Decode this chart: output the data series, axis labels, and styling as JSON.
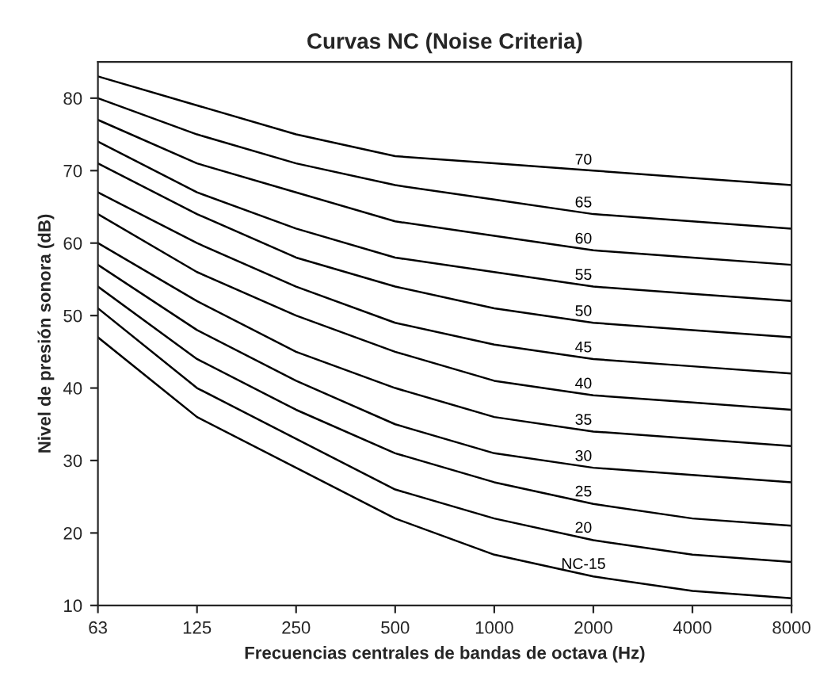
{
  "chart_data": {
    "type": "line",
    "title": "Curvas NC (Noise Criteria)",
    "xlabel": "Frecuencias centrales de bandas de octava (Hz)",
    "ylabel": "Nivel de presión sonora (dB)",
    "categories": [
      "63",
      "125",
      "250",
      "500",
      "1000",
      "2000",
      "4000",
      "8000"
    ],
    "ylim": [
      10,
      85
    ],
    "yticks": [
      10,
      20,
      30,
      40,
      50,
      60,
      70,
      80
    ],
    "grid": false,
    "legend": false,
    "marker": "none",
    "line_style": "solid",
    "series": [
      {
        "name": "NC-15",
        "color": "#000000",
        "values": [
          47,
          36,
          29,
          22,
          17,
          14,
          12,
          11
        ]
      },
      {
        "name": "20",
        "color": "#000000",
        "values": [
          51,
          40,
          33,
          26,
          22,
          19,
          17,
          16
        ]
      },
      {
        "name": "25",
        "color": "#000000",
        "values": [
          54,
          44,
          37,
          31,
          27,
          24,
          22,
          21
        ]
      },
      {
        "name": "30",
        "color": "#000000",
        "values": [
          57,
          48,
          41,
          35,
          31,
          29,
          28,
          27
        ]
      },
      {
        "name": "35",
        "color": "#000000",
        "values": [
          60,
          52,
          45,
          40,
          36,
          34,
          33,
          32
        ]
      },
      {
        "name": "40",
        "color": "#000000",
        "values": [
          64,
          56,
          50,
          45,
          41,
          39,
          38,
          37
        ]
      },
      {
        "name": "45",
        "color": "#000000",
        "values": [
          67,
          60,
          54,
          49,
          46,
          44,
          43,
          42
        ]
      },
      {
        "name": "50",
        "color": "#000000",
        "values": [
          71,
          64,
          58,
          54,
          51,
          49,
          48,
          47
        ]
      },
      {
        "name": "55",
        "color": "#000000",
        "values": [
          74,
          67,
          62,
          58,
          56,
          54,
          53,
          52
        ]
      },
      {
        "name": "60",
        "color": "#000000",
        "values": [
          77,
          71,
          67,
          63,
          61,
          59,
          58,
          57
        ]
      },
      {
        "name": "65",
        "color": "#000000",
        "values": [
          80,
          75,
          71,
          68,
          66,
          64,
          63,
          62
        ]
      },
      {
        "name": "70",
        "color": "#000000",
        "values": [
          83,
          79,
          75,
          72,
          71,
          70,
          69,
          68
        ]
      }
    ]
  }
}
